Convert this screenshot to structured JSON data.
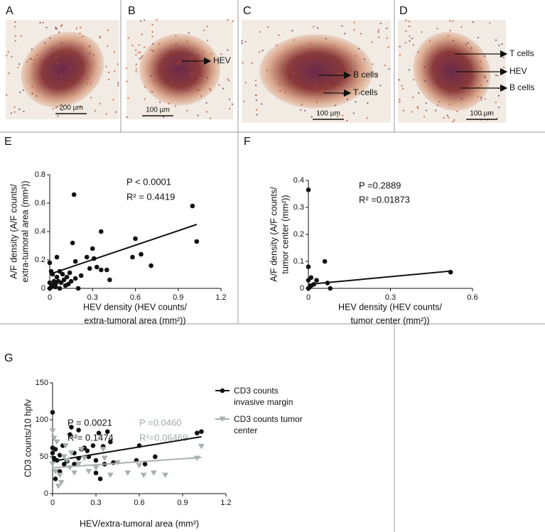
{
  "panels": [
    {
      "letter": "A",
      "scale": "200 µm",
      "labels": []
    },
    {
      "letter": "B",
      "scale": "100 µm",
      "labels": [
        "HEV"
      ]
    },
    {
      "letter": "C",
      "scale": "100 µm",
      "labels": [
        "B cells",
        "T cells"
      ]
    },
    {
      "letter": "D",
      "scale": "100 µm",
      "labels": [
        "T cells",
        "HEV",
        "B cells"
      ]
    }
  ],
  "chart_data": [
    {
      "type": "scatter",
      "panel": "E",
      "x_label": [
        "HEV density (HEV counts/",
        "extra-tumoral area (mm²))"
      ],
      "y_label": [
        "A/F density (A/F counts/",
        "extra-tumoral area (mm²))"
      ],
      "annotations": [
        {
          "text": "P  < 0.0001",
          "color": "#111"
        },
        {
          "text": "R² = 0.4419",
          "color": "#111"
        }
      ],
      "color": "#111",
      "x": [
        0.17,
        1.0,
        1.03,
        0.36,
        0.6,
        0.3,
        0.31,
        0.16,
        0.58,
        0.64,
        0.71,
        0.33,
        0.36,
        0.4,
        0.42,
        0.26,
        0.05,
        0.0,
        0.18,
        0.14,
        0.12,
        0.09,
        0.07,
        0.05,
        0.03,
        0.02,
        0.0,
        0.01,
        0.04,
        0.06,
        0.08,
        0.1,
        0.13,
        0.15,
        0.18,
        0.22,
        0.28,
        0.02,
        0.0,
        0.01,
        0.11,
        0.07,
        0.04,
        0.2
      ],
      "values": [
        0.66,
        0.58,
        0.33,
        0.4,
        0.35,
        0.28,
        0.21,
        0.32,
        0.22,
        0.24,
        0.16,
        0.15,
        0.13,
        0.13,
        0.06,
        0.22,
        0.22,
        0.18,
        0.19,
        0.11,
        0.08,
        0.1,
        0.12,
        0.08,
        0.05,
        0.02,
        0.0,
        0.01,
        0.03,
        0.05,
        0.04,
        0.06,
        0.03,
        0.05,
        0.07,
        0.09,
        0.14,
        0.1,
        0.04,
        0.12,
        0.02,
        0.0,
        0.01,
        0.0
      ],
      "fit": {
        "x": [
          0,
          1.03
        ],
        "y": [
          0.1,
          0.45
        ]
      },
      "xlim": [
        0,
        1.2
      ],
      "xticks": [
        0,
        0.3,
        0.6,
        0.9,
        1.2
      ],
      "ylim": [
        0,
        0.8
      ],
      "yticks": [
        0,
        0.2,
        0.4,
        0.6,
        0.8
      ]
    },
    {
      "type": "scatter",
      "panel": "F",
      "x_label": [
        "HEV density (HEV counts/",
        "tumor center (mm²))"
      ],
      "y_label": [
        "A/F density (A/F counts/",
        "tumor center (mm²))"
      ],
      "annotations": [
        {
          "text": "P =0.2889",
          "color": "#111"
        },
        {
          "text": "R² =0.01873",
          "color": "#111"
        }
      ],
      "color": "#111",
      "x": [
        0.0,
        0.0,
        0.01,
        0.03,
        0.06,
        0.07,
        0.08,
        0.0,
        0.01,
        0.02,
        0.005,
        0.52,
        0.0
      ],
      "values": [
        0.365,
        0.08,
        0.04,
        0.03,
        0.1,
        0.02,
        0.0,
        0.0,
        0.01,
        0.015,
        0.005,
        0.06,
        0.03
      ],
      "fit": {
        "x": [
          0,
          0.52
        ],
        "y": [
          0.015,
          0.064
        ]
      },
      "xlim": [
        0,
        0.6
      ],
      "xticks": [
        0,
        0.3,
        0.6
      ],
      "ylim": [
        0,
        0.4
      ],
      "yticks": [
        0,
        0.1,
        0.2,
        0.3,
        0.4
      ]
    },
    {
      "type": "scatter",
      "panel": "G",
      "x_label": [
        "HEV/extra-tumoral area (mm²)"
      ],
      "y_label": [
        "CD3 counts/10 hpfv"
      ],
      "annotations": [
        {
          "text": "P = 0.0021",
          "color": "#111"
        },
        {
          "text": "R²= 0.1474",
          "color": "#111"
        },
        {
          "text": "P =0.0460",
          "color": "#a0a8a8"
        },
        {
          "text": "R²=0.06469",
          "color": "#a0a8a8"
        }
      ],
      "series": [
        {
          "name": "CD3 counts invasive margin",
          "color": "#111",
          "marker": "circle",
          "x": [
            0,
            0,
            0,
            0.01,
            0.02,
            0.03,
            0.05,
            0.08,
            0.1,
            0.12,
            0.15,
            0.13,
            0.18,
            0.2,
            0.22,
            0.25,
            0.28,
            0.3,
            0.32,
            0.35,
            0.38,
            0.4,
            0.42,
            0.36,
            0.3,
            0.33,
            0.6,
            0.58,
            0.64,
            0.71,
            1.0,
            1.03,
            0.05,
            0.02,
            0.07,
            0.15,
            0.18,
            0.24
          ],
          "values": [
            110,
            62,
            55,
            48,
            60,
            45,
            52,
            40,
            44,
            80,
            55,
            90,
            86,
            60,
            62,
            50,
            65,
            45,
            82,
            64,
            84,
            70,
            42,
            40,
            28,
            20,
            65,
            45,
            40,
            50,
            82,
            84,
            30,
            20,
            65,
            40,
            48,
            58
          ],
          "fit": {
            "x": [
              0,
              1.03
            ],
            "y": [
              44,
              77
            ]
          }
        },
        {
          "name": "CD3 counts tumor center",
          "color": "#a8b0b0",
          "marker": "triangle",
          "x": [
            0,
            0.01,
            0.03,
            0,
            0.02,
            0.05,
            0.06,
            0.08,
            0.1,
            0.12,
            0.15,
            0.18,
            0.2,
            0.25,
            0.3,
            0.35,
            0.36,
            0.45,
            0.52,
            0.6,
            0.63,
            0.7,
            0.78,
            1.0,
            1.03,
            0.13,
            0.22,
            0.04,
            0.09,
            0.4
          ],
          "values": [
            85,
            75,
            70,
            40,
            30,
            25,
            15,
            50,
            45,
            35,
            28,
            40,
            60,
            30,
            35,
            60,
            48,
            42,
            28,
            38,
            25,
            28,
            25,
            48,
            64,
            55,
            48,
            10,
            65,
            25
          ],
          "fit": {
            "x": [
              0,
              1.03
            ],
            "y": [
              35,
              49
            ]
          }
        }
      ],
      "xlim": [
        0,
        1.2
      ],
      "xticks": [
        0,
        0.3,
        0.6,
        0.9,
        1.2
      ],
      "ylim": [
        0,
        150
      ],
      "yticks": [
        0,
        50,
        100,
        150
      ]
    }
  ]
}
